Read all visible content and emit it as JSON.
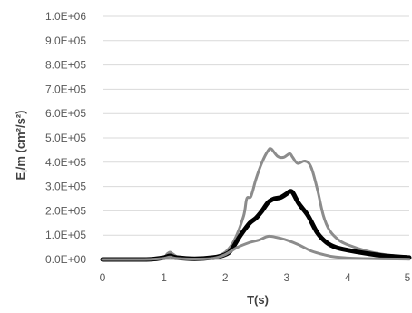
{
  "chart_data": {
    "type": "line",
    "title": "",
    "xlabel": "T(s)",
    "ylabel": "E",
    "ylabel_sub": "I",
    "ylabel_rest": "/m (cm²/s²)",
    "xlim": [
      0,
      5
    ],
    "ylim": [
      0,
      1000000
    ],
    "x_ticks": [
      0,
      1,
      2,
      3,
      4,
      5
    ],
    "x_tick_labels": [
      "0",
      "1",
      "2",
      "3",
      "4",
      "5"
    ],
    "y_ticks": [
      0,
      100000,
      200000,
      300000,
      400000,
      500000,
      600000,
      700000,
      800000,
      900000,
      1000000
    ],
    "y_tick_labels": [
      "0.0E+00",
      "1.0E+05",
      "2.0E+05",
      "3.0E+05",
      "4.0E+05",
      "5.0E+05",
      "6.0E+05",
      "7.0E+05",
      "8.0E+05",
      "9.0E+05",
      "1.0E+06"
    ],
    "grid": "horizontal",
    "legend": "none",
    "series": [
      {
        "color": "#8c8c8c",
        "width": 3,
        "points": [
          [
            0,
            0
          ],
          [
            0.5,
            0
          ],
          [
            0.8,
            2000
          ],
          [
            1.0,
            10000
          ],
          [
            1.05,
            22000
          ],
          [
            1.1,
            30000
          ],
          [
            1.15,
            22000
          ],
          [
            1.25,
            8000
          ],
          [
            1.5,
            5000
          ],
          [
            1.8,
            10000
          ],
          [
            2.0,
            30000
          ],
          [
            2.15,
            80000
          ],
          [
            2.3,
            180000
          ],
          [
            2.35,
            250000
          ],
          [
            2.42,
            260000
          ],
          [
            2.5,
            330000
          ],
          [
            2.6,
            400000
          ],
          [
            2.7,
            448000
          ],
          [
            2.75,
            455000
          ],
          [
            2.85,
            425000
          ],
          [
            2.95,
            420000
          ],
          [
            3.05,
            435000
          ],
          [
            3.1,
            420000
          ],
          [
            3.18,
            395000
          ],
          [
            3.3,
            405000
          ],
          [
            3.4,
            380000
          ],
          [
            3.5,
            290000
          ],
          [
            3.6,
            180000
          ],
          [
            3.7,
            120000
          ],
          [
            3.85,
            80000
          ],
          [
            4.0,
            60000
          ],
          [
            4.3,
            35000
          ],
          [
            4.6,
            20000
          ],
          [
            5.0,
            10000
          ]
        ]
      },
      {
        "color": "#000000",
        "width": 5,
        "points": [
          [
            0,
            0
          ],
          [
            0.5,
            0
          ],
          [
            0.8,
            1000
          ],
          [
            1.0,
            8000
          ],
          [
            1.1,
            15000
          ],
          [
            1.2,
            8000
          ],
          [
            1.5,
            3000
          ],
          [
            1.8,
            8000
          ],
          [
            2.0,
            20000
          ],
          [
            2.1,
            40000
          ],
          [
            2.25,
            100000
          ],
          [
            2.4,
            150000
          ],
          [
            2.5,
            170000
          ],
          [
            2.6,
            200000
          ],
          [
            2.7,
            235000
          ],
          [
            2.8,
            250000
          ],
          [
            2.9,
            255000
          ],
          [
            3.0,
            270000
          ],
          [
            3.05,
            280000
          ],
          [
            3.1,
            275000
          ],
          [
            3.2,
            230000
          ],
          [
            3.35,
            180000
          ],
          [
            3.5,
            110000
          ],
          [
            3.65,
            70000
          ],
          [
            3.8,
            50000
          ],
          [
            4.0,
            38000
          ],
          [
            4.3,
            25000
          ],
          [
            4.6,
            15000
          ],
          [
            5.0,
            8000
          ]
        ]
      },
      {
        "color": "#8c8c8c",
        "width": 3,
        "points": [
          [
            0,
            0
          ],
          [
            0.5,
            0
          ],
          [
            0.8,
            1000
          ],
          [
            1.0,
            5000
          ],
          [
            1.1,
            10000
          ],
          [
            1.2,
            5000
          ],
          [
            1.5,
            2000
          ],
          [
            1.8,
            5000
          ],
          [
            2.0,
            20000
          ],
          [
            2.2,
            50000
          ],
          [
            2.4,
            70000
          ],
          [
            2.55,
            80000
          ],
          [
            2.7,
            95000
          ],
          [
            2.85,
            90000
          ],
          [
            3.0,
            80000
          ],
          [
            3.2,
            60000
          ],
          [
            3.4,
            35000
          ],
          [
            3.6,
            20000
          ],
          [
            3.8,
            10000
          ],
          [
            4.2,
            4000
          ],
          [
            5.0,
            1000
          ]
        ]
      }
    ]
  }
}
